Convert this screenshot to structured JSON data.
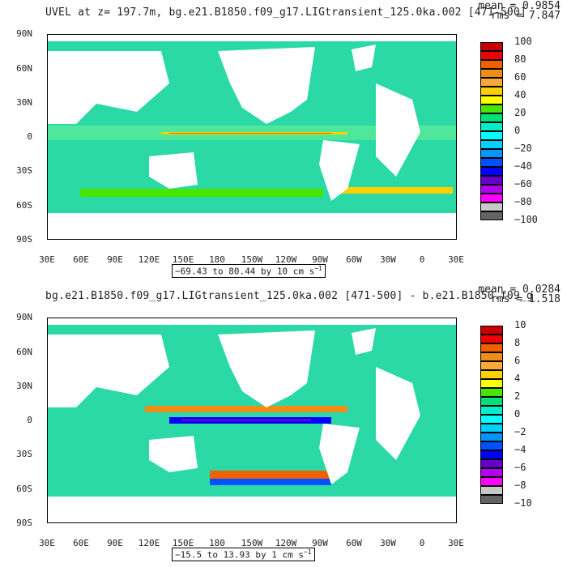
{
  "colors": {
    "ocean_base": "#2bd9a7",
    "equator_fill": "#4fe89a",
    "land": "#ffffff",
    "frame": "#000000"
  },
  "chart_data": [
    {
      "type": "heatmap",
      "title": "UVEL at z= 197.7m, bg.e21.B1850.f09_g17.LIGtransient_125.0ka.002 [471-500]",
      "mean_label": "mean = 0.9854",
      "rms_label": "rms = 7.847",
      "y_ticks": [
        "90N",
        "60N",
        "30N",
        "0",
        "30S",
        "60S",
        "90S"
      ],
      "x_ticks": [
        "30E",
        "60E",
        "90E",
        "120E",
        "150E",
        "180",
        "150W",
        "120W",
        "90W",
        "60W",
        "30W",
        "0",
        "30E"
      ],
      "range_text": "−69.43 to 80.44 by 10 cm s",
      "range_unit_exp": "−1",
      "levels": [
        "100",
        "80",
        "60",
        "40",
        "20",
        "0",
        "−20",
        "−40",
        "−60",
        "−80",
        "−100"
      ],
      "level_colors": [
        "#c80000",
        "#f00000",
        "#f06000",
        "#f08c18",
        "#f8a838",
        "#ffd000",
        "#ffff00",
        "#46e600",
        "#00e07a",
        "#00eec8",
        "#00ffff",
        "#00d0ff",
        "#0096ff",
        "#0050ff",
        "#0000ff",
        "#6400c8",
        "#b400f0",
        "#ff00ff",
        "#c8c8c8",
        "#646464"
      ],
      "xlim": [
        30,
        390
      ],
      "ylim": [
        -90,
        90
      ]
    },
    {
      "type": "heatmap",
      "title": "bg.e21.B1850.f09_g17.LIGtransient_125.0ka.002 [471-500] - b.e21.B1850.f09_g",
      "mean_label": "mean = 0.0284",
      "rms_label": "rms = 1.518",
      "y_ticks": [
        "90N",
        "60N",
        "30N",
        "0",
        "30S",
        "60S",
        "90S"
      ],
      "x_ticks": [
        "30E",
        "60E",
        "90E",
        "120E",
        "150E",
        "180",
        "150W",
        "120W",
        "90W",
        "60W",
        "30W",
        "0",
        "30E"
      ],
      "range_text": "−15.5 to 13.93 by 1 cm s",
      "range_unit_exp": "−1",
      "levels": [
        "10",
        "8",
        "6",
        "4",
        "2",
        "0",
        "−2",
        "−4",
        "−6",
        "−8",
        "−10"
      ],
      "level_colors": [
        "#c80000",
        "#f00000",
        "#f06000",
        "#f08c18",
        "#f8a838",
        "#ffd000",
        "#ffff00",
        "#46e600",
        "#00e07a",
        "#00eec8",
        "#00ffff",
        "#00d0ff",
        "#0096ff",
        "#0050ff",
        "#0000ff",
        "#6400c8",
        "#b400f0",
        "#ff00ff",
        "#c8c8c8",
        "#646464"
      ],
      "xlim": [
        30,
        390
      ],
      "ylim": [
        -90,
        90
      ]
    }
  ]
}
